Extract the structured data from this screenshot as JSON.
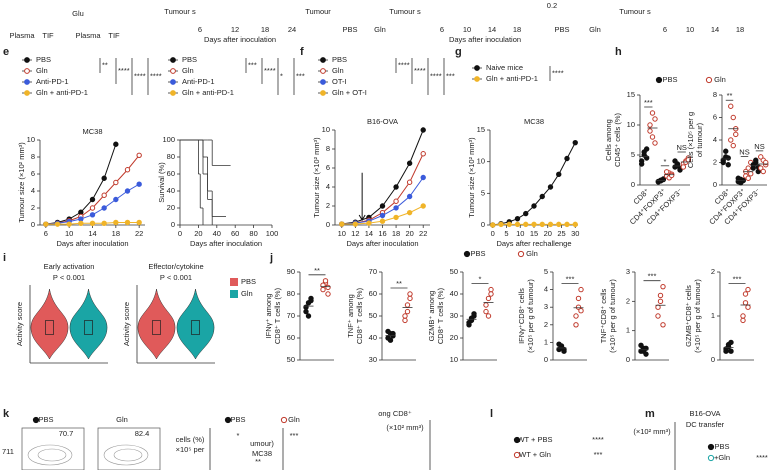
{
  "panel_labels": [
    "e",
    "f",
    "g",
    "h",
    "i",
    "j",
    "k",
    "l",
    "m"
  ],
  "labels": [
    "Plasma",
    "TIF",
    "Plasma",
    "TIF",
    "Glu",
    "Tumour s",
    "6",
    "12",
    "18",
    "24",
    "Days after inoculation",
    "Tumour",
    "PBS",
    "Gln",
    "Tumour s",
    "6",
    "10",
    "14",
    "18",
    "Days after inoculation",
    "0.2",
    "PBS",
    "Gln",
    "Tumour s",
    "6",
    "10",
    "14",
    "18",
    "PBS",
    "Gln",
    "PBS",
    "Gln",
    "PBS",
    "Gln",
    "70.7",
    "82.4",
    "PBS",
    "Gln",
    "*",
    "**",
    "***",
    "ong CD8⁺",
    "cells (%)",
    "×10⁵ per",
    "umour)",
    "MC38",
    "(×10² mm³)",
    "WT + PBS",
    "WT + Gln",
    "****",
    "***",
    "B16-OVA",
    "DC transfer",
    "PBS",
    "+Gln",
    "(×10² mm³)",
    "****",
    "711"
  ],
  "chart_data": [
    {
      "type": "line",
      "title": "MC38",
      "xlabel": "Days after inoculation",
      "ylabel": [
        "Tumour size (×10² mm³)"
      ],
      "x": [
        6,
        8,
        10,
        12,
        14,
        16,
        18,
        20,
        22
      ],
      "xlim": [
        5,
        23
      ],
      "xticks": [
        6,
        10,
        14,
        18,
        22
      ],
      "ylim": [
        0,
        10
      ],
      "yticks": [
        0,
        2,
        4,
        6,
        8,
        10
      ],
      "series": [
        {
          "name": "PBS",
          "color": "#111111",
          "filled": true,
          "values": [
            0.1,
            0.3,
            0.7,
            1.5,
            3,
            5.5,
            9.5,
            null,
            null
          ]
        },
        {
          "name": "Gln",
          "color": "#c0392b",
          "filled": false,
          "values": [
            0.1,
            0.2,
            0.5,
            1,
            2,
            3.5,
            5,
            6.5,
            8.2
          ]
        },
        {
          "name": "Anti-PD-1",
          "color": "#3b5bdb",
          "filled": true,
          "values": [
            0.1,
            0.2,
            0.4,
            0.7,
            1.2,
            2,
            3,
            4,
            4.8
          ]
        },
        {
          "name": "Gln + anti-PD-1",
          "color": "#f0b429",
          "filled": true,
          "values": [
            0.1,
            0.1,
            0.1,
            0.2,
            0.2,
            0.2,
            0.3,
            0.3,
            0.3
          ]
        }
      ],
      "stats": [
        "**",
        "****",
        "****",
        "****"
      ]
    },
    {
      "type": "survival",
      "xlabel": "Days after inoculation",
      "ylabel": [
        "Survival (%)"
      ],
      "xlim": [
        0,
        100
      ],
      "xticks": [
        0,
        20,
        40,
        60,
        80,
        100
      ],
      "ylim": [
        0,
        100
      ],
      "yticks": [
        0,
        20,
        40,
        60,
        80,
        100
      ],
      "series": [
        {
          "name": "PBS",
          "color": "#111111",
          "filled": true,
          "x": [
            0,
            18,
            20,
            22,
            25
          ],
          "values": [
            100,
            100,
            60,
            20,
            0
          ]
        },
        {
          "name": "Gln",
          "color": "#c0392b",
          "filled": false,
          "x": [
            0,
            22,
            25,
            30,
            35
          ],
          "values": [
            100,
            100,
            60,
            30,
            0
          ]
        },
        {
          "name": "Anti-PD-1",
          "color": "#3b5bdb",
          "filled": true,
          "x": [
            0,
            25,
            30,
            35,
            50
          ],
          "values": [
            100,
            80,
            40,
            10,
            10
          ]
        },
        {
          "name": "Gln + anti-PD-1",
          "color": "#f0b429",
          "filled": true,
          "x": [
            0,
            30,
            35,
            55
          ],
          "values": [
            100,
            100,
            70,
            70
          ]
        }
      ],
      "stats": [
        "***",
        "****",
        "*",
        "***"
      ]
    },
    {
      "type": "line",
      "title": "B16-OVA",
      "xlabel": "Days after inoculation",
      "ylabel": [
        "Tumour size (×10² mm³)"
      ],
      "arrow_x": 13,
      "x": [
        10,
        12,
        14,
        16,
        18,
        20,
        22
      ],
      "xlim": [
        9,
        23
      ],
      "xticks": [
        10,
        12,
        14,
        16,
        18,
        20,
        22
      ],
      "ylim": [
        0,
        10
      ],
      "yticks": [
        0,
        2,
        4,
        6,
        8,
        10
      ],
      "series": [
        {
          "name": "PBS",
          "color": "#111111",
          "filled": true,
          "values": [
            0.1,
            0.3,
            0.8,
            2,
            4,
            6.5,
            10
          ]
        },
        {
          "name": "Gln",
          "color": "#c0392b",
          "filled": false,
          "values": [
            0.1,
            0.2,
            0.5,
            1.3,
            2.5,
            4.5,
            7.5
          ]
        },
        {
          "name": "OT-I",
          "color": "#3b5bdb",
          "filled": true,
          "values": [
            0.1,
            0.2,
            0.4,
            1,
            1.8,
            3,
            5
          ]
        },
        {
          "name": "Gln + OT-I",
          "color": "#f0b429",
          "filled": true,
          "values": [
            0.1,
            0.1,
            0.2,
            0.4,
            0.8,
            1.3,
            2
          ]
        }
      ],
      "stats": [
        "****",
        "****",
        "****",
        "***"
      ]
    },
    {
      "type": "line",
      "title": "MC38",
      "xlabel": "Days after rechallenge",
      "ylabel": [
        "Tumour size (×10² mm³)"
      ],
      "x": [
        0,
        3,
        6,
        9,
        12,
        15,
        18,
        21,
        24,
        27,
        30
      ],
      "xlim": [
        -1,
        31
      ],
      "xticks": [
        0,
        5,
        10,
        15,
        20,
        25,
        30
      ],
      "ylim": [
        0,
        15
      ],
      "yticks": [
        0,
        5,
        10,
        15
      ],
      "series": [
        {
          "name": "Naive mice",
          "color": "#111111",
          "filled": true,
          "values": [
            0,
            0.2,
            0.5,
            1,
            1.8,
            3,
            4.5,
            6,
            8,
            10.5,
            13
          ]
        },
        {
          "name": "Gln + anti-PD-1",
          "color": "#f0b429",
          "filled": true,
          "values": [
            0,
            0.1,
            0.1,
            0.1,
            0.1,
            0.1,
            0.1,
            0.1,
            0.1,
            0.1,
            0.1
          ]
        }
      ],
      "stats": [
        "****"
      ]
    },
    {
      "type": "dot",
      "ylabel": [
        "Cells among",
        "CD45⁺ cells (%)"
      ],
      "categories": [
        "CD8⁺",
        "CD4⁺FOXP3⁺",
        "CD4⁺FOXP3⁻"
      ],
      "ylim": [
        0,
        15
      ],
      "yticks": [
        0,
        5,
        10,
        15
      ],
      "series": [
        {
          "color": "#111111",
          "filled": true,
          "values": [
            [
              4,
              5,
              6,
              3.5,
              5.5,
              4.5
            ],
            [
              0.5,
              0.8,
              1,
              0.6,
              0.7,
              0.9
            ],
            [
              3,
              3.5,
              2.5,
              4,
              3.2,
              2.8
            ]
          ]
        },
        {
          "color": "#c0392b",
          "filled": false,
          "values": [
            [
              9,
              12,
              7,
              10,
              8,
              11
            ],
            [
              1.5,
              2,
              1.8,
              2.2,
              1.2,
              1.6
            ],
            [
              3.5,
              4,
              4.5,
              3,
              3.8,
              4.2
            ]
          ]
        }
      ],
      "stats": [
        "***",
        "*",
        "NS"
      ]
    },
    {
      "type": "dot",
      "ylabel": [
        "Cells (×10⁵ per g",
        "of tumour)"
      ],
      "categories": [
        "CD8⁺",
        "CD4⁺FOXP3⁺",
        "CD4⁺FOXP3⁻"
      ],
      "ylim": [
        0,
        8
      ],
      "yticks": [
        0,
        2,
        4,
        6,
        8
      ],
      "series": [
        {
          "color": "#111111",
          "filled": true,
          "values": [
            [
              2,
              2.5,
              1.8,
              2.2,
              3,
              2.4
            ],
            [
              0.3,
              0.5,
              0.4,
              0.6,
              0.2,
              0.4
            ],
            [
              1.5,
              2,
              1.2,
              1.8,
              2.2,
              1.6
            ]
          ]
        },
        {
          "color": "#c0392b",
          "filled": false,
          "values": [
            [
              4,
              6,
              5,
              7,
              3.5,
              4.5
            ],
            [
              0.8,
              1.5,
              1,
              1.2,
              0.6,
              2
            ],
            [
              1.5,
              2.2,
              1.8,
              2.5,
              1.2,
              2
            ]
          ]
        }
      ],
      "stats": [
        "**",
        "NS",
        "NS"
      ]
    },
    {
      "type": "violin",
      "title": "Early activation",
      "annotation": "P < 0.001",
      "ylabel": [
        "Activity score"
      ],
      "series": [
        {
          "color": "#e05a5a"
        },
        {
          "color": "#1aa5a5"
        }
      ]
    },
    {
      "type": "violin",
      "title": "Effector/cytokine",
      "annotation": "P < 0.001",
      "ylabel": [
        "Activity score"
      ],
      "series": [
        {
          "name": "PBS",
          "color": "#e05a5a"
        },
        {
          "name": "Gln",
          "color": "#1aa5a5"
        }
      ]
    },
    {
      "type": "dot",
      "ylabel": [
        "IFNγ⁺ among",
        "CD8⁺ T cells (%)"
      ],
      "ylim": [
        50,
        90
      ],
      "yticks": [
        50,
        60,
        70,
        80,
        90
      ],
      "series": [
        {
          "color": "#111111",
          "filled": true,
          "values": [
            72,
            76,
            78,
            74,
            70,
            77
          ]
        },
        {
          "color": "#c0392b",
          "filled": false,
          "values": [
            82,
            85,
            80,
            84,
            86,
            83
          ]
        }
      ],
      "stats": [
        "**"
      ]
    },
    {
      "type": "dot",
      "ylabel": [
        "TNF⁺ among",
        "CD8⁺ T cells (%)"
      ],
      "ylim": [
        30,
        70
      ],
      "yticks": [
        30,
        40,
        50,
        60,
        70
      ],
      "series": [
        {
          "color": "#111111",
          "filled": true,
          "values": [
            40,
            42,
            41,
            43,
            39,
            42
          ]
        },
        {
          "color": "#c0392b",
          "filled": false,
          "values": [
            50,
            55,
            60,
            48,
            52,
            58
          ]
        }
      ],
      "stats": [
        "**"
      ]
    },
    {
      "type": "dot",
      "ylabel": [
        "GZMB⁺ among",
        "CD8⁺ T cells (%)"
      ],
      "ylim": [
        10,
        50
      ],
      "yticks": [
        10,
        20,
        30,
        40,
        50
      ],
      "series": [
        {
          "color": "#111111",
          "filled": true,
          "values": [
            26,
            28,
            30,
            27,
            29,
            31
          ]
        },
        {
          "color": "#c0392b",
          "filled": false,
          "values": [
            32,
            38,
            42,
            35,
            30,
            40
          ]
        }
      ],
      "stats": [
        "*"
      ]
    },
    {
      "type": "dot",
      "ylabel": [
        "IFNγ⁺CD8⁺ cells",
        "(×10⁵ per g of tumour)"
      ],
      "ylim": [
        0,
        5
      ],
      "yticks": [
        0,
        1,
        2,
        3,
        4,
        5
      ],
      "series": [
        {
          "color": "#111111",
          "filled": true,
          "values": [
            0.6,
            0.8,
            0.5,
            0.9,
            0.7,
            0.6
          ]
        },
        {
          "color": "#c0392b",
          "filled": false,
          "values": [
            2,
            3,
            4,
            2.5,
            3.5,
            2.8
          ]
        }
      ],
      "stats": [
        "***"
      ]
    },
    {
      "type": "dot",
      "ylabel": [
        "TNF⁺CD8⁺ cells",
        "(×10⁵ per g of tumour)"
      ],
      "ylim": [
        0,
        3
      ],
      "yticks": [
        0,
        1,
        2,
        3
      ],
      "series": [
        {
          "color": "#111111",
          "filled": true,
          "values": [
            0.3,
            0.4,
            0.2,
            0.5,
            0.3,
            0.4
          ]
        },
        {
          "color": "#c0392b",
          "filled": false,
          "values": [
            1.5,
            2,
            2.5,
            1.8,
            2.2,
            1.2
          ]
        }
      ],
      "stats": [
        "***"
      ]
    },
    {
      "type": "dot",
      "ylabel": [
        "GZMB⁺CD8⁺ cells",
        "(×10⁵ per g of tumour)"
      ],
      "ylim": [
        0,
        2
      ],
      "yticks": [
        0,
        1,
        2
      ],
      "series": [
        {
          "color": "#111111",
          "filled": true,
          "values": [
            0.2,
            0.3,
            0.4,
            0.25,
            0.35,
            0.2
          ]
        },
        {
          "color": "#c0392b",
          "filled": false,
          "values": [
            1,
            1.3,
            1.6,
            0.9,
            1.5,
            1.2
          ]
        }
      ],
      "stats": [
        "***"
      ]
    }
  ]
}
